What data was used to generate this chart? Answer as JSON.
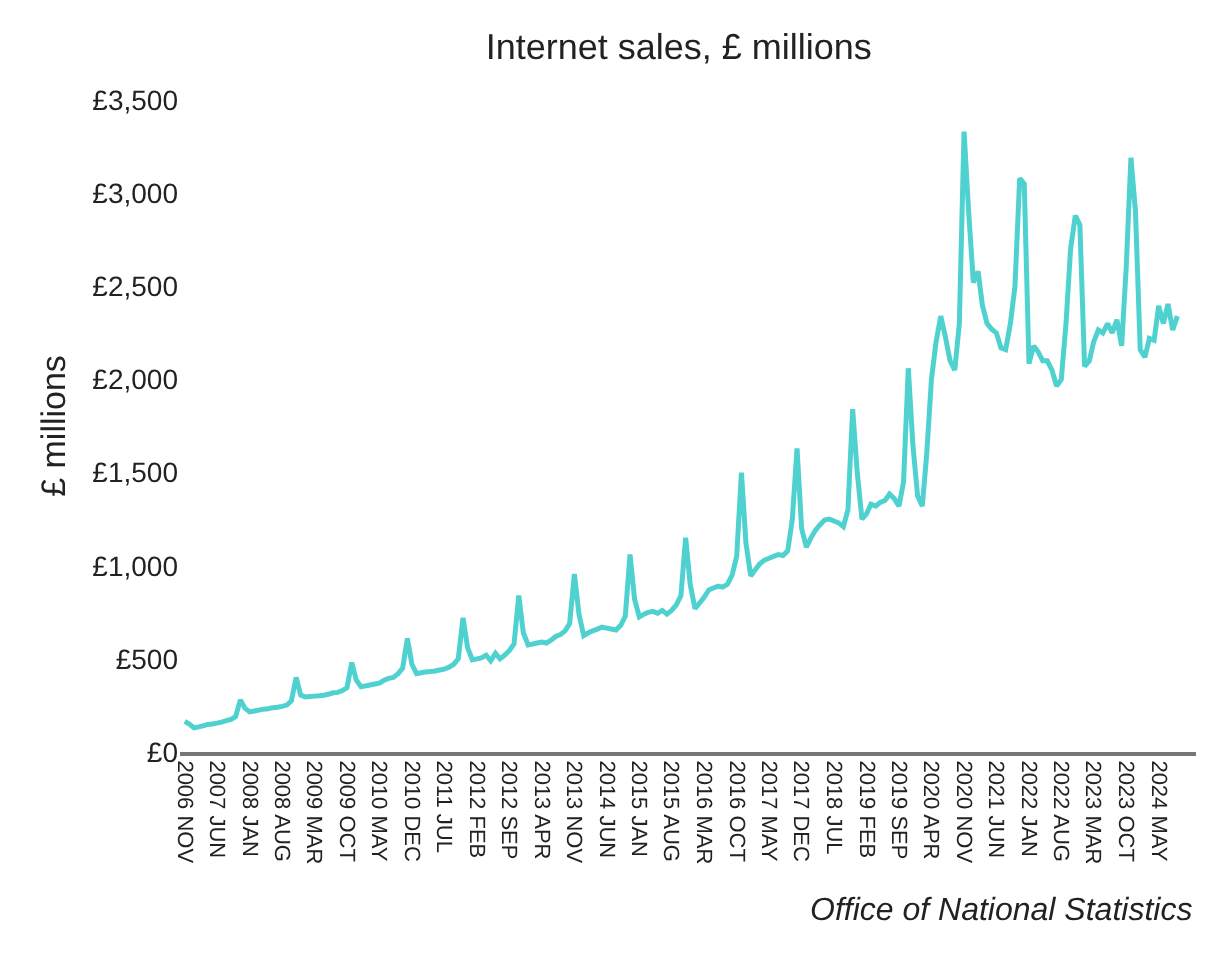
{
  "chart_data": {
    "type": "line",
    "title": "Internet sales, £ millions",
    "ylabel": "£ millions",
    "annotations": [
      "Office of National Statistics"
    ],
    "x": [
      "2006-11",
      "2006-12",
      "2007-01",
      "2007-02",
      "2007-03",
      "2007-04",
      "2007-05",
      "2007-06",
      "2007-07",
      "2007-08",
      "2007-09",
      "2007-10",
      "2007-11",
      "2007-12",
      "2008-01",
      "2008-02",
      "2008-03",
      "2008-04",
      "2008-05",
      "2008-06",
      "2008-07",
      "2008-08",
      "2008-09",
      "2008-10",
      "2008-11",
      "2008-12",
      "2009-01",
      "2009-02",
      "2009-03",
      "2009-04",
      "2009-05",
      "2009-06",
      "2009-07",
      "2009-08",
      "2009-09",
      "2009-10",
      "2009-11",
      "2009-12",
      "2010-01",
      "2010-02",
      "2010-03",
      "2010-04",
      "2010-05",
      "2010-06",
      "2010-07",
      "2010-08",
      "2010-09",
      "2010-10",
      "2010-11",
      "2010-12",
      "2011-01",
      "2011-02",
      "2011-03",
      "2011-04",
      "2011-05",
      "2011-06",
      "2011-07",
      "2011-08",
      "2011-09",
      "2011-10",
      "2011-11",
      "2011-12",
      "2012-01",
      "2012-02",
      "2012-03",
      "2012-04",
      "2012-05",
      "2012-06",
      "2012-07",
      "2012-08",
      "2012-09",
      "2012-10",
      "2012-11",
      "2012-12",
      "2013-01",
      "2013-02",
      "2013-03",
      "2013-04",
      "2013-05",
      "2013-06",
      "2013-07",
      "2013-08",
      "2013-09",
      "2013-10",
      "2013-11",
      "2013-12",
      "2014-01",
      "2014-02",
      "2014-03",
      "2014-04",
      "2014-05",
      "2014-06",
      "2014-07",
      "2014-08",
      "2014-09",
      "2014-10",
      "2014-11",
      "2014-12",
      "2015-01",
      "2015-02",
      "2015-03",
      "2015-04",
      "2015-05",
      "2015-06",
      "2015-07",
      "2015-08",
      "2015-09",
      "2015-10",
      "2015-11",
      "2015-12",
      "2016-01",
      "2016-02",
      "2016-03",
      "2016-04",
      "2016-05",
      "2016-06",
      "2016-07",
      "2016-08",
      "2016-09",
      "2016-10",
      "2016-11",
      "2016-12",
      "2017-01",
      "2017-02",
      "2017-03",
      "2017-04",
      "2017-05",
      "2017-06",
      "2017-07",
      "2017-08",
      "2017-09",
      "2017-10",
      "2017-11",
      "2017-12",
      "2018-01",
      "2018-02",
      "2018-03",
      "2018-04",
      "2018-05",
      "2018-06",
      "2018-07",
      "2018-08",
      "2018-09",
      "2018-10",
      "2018-11",
      "2018-12",
      "2019-01",
      "2019-02",
      "2019-03",
      "2019-04",
      "2019-05",
      "2019-06",
      "2019-07",
      "2019-08",
      "2019-09",
      "2019-10",
      "2019-11",
      "2019-12",
      "2020-01",
      "2020-02",
      "2020-03",
      "2020-04",
      "2020-05",
      "2020-06",
      "2020-07",
      "2020-08",
      "2020-09",
      "2020-10",
      "2020-11",
      "2020-12",
      "2021-01",
      "2021-02",
      "2021-03",
      "2021-04",
      "2021-05",
      "2021-06",
      "2021-07",
      "2021-08",
      "2021-09",
      "2021-10",
      "2021-11",
      "2021-12",
      "2022-01",
      "2022-02",
      "2022-03",
      "2022-04",
      "2022-05",
      "2022-06",
      "2022-07",
      "2022-08",
      "2022-09",
      "2022-10",
      "2022-11",
      "2022-12",
      "2023-01",
      "2023-02",
      "2023-03",
      "2023-04",
      "2023-05",
      "2023-06",
      "2023-07",
      "2023-08",
      "2023-09",
      "2023-10",
      "2023-11",
      "2023-12",
      "2024-01",
      "2024-02",
      "2024-03",
      "2024-04",
      "2024-05",
      "2024-06",
      "2024-07",
      "2024-08",
      "2024-09"
    ],
    "series": [
      {
        "color": "#4fd1d0",
        "values": [
          165,
          150,
          130,
          135,
          140,
          148,
          150,
          155,
          160,
          168,
          175,
          190,
          280,
          235,
          215,
          220,
          225,
          230,
          232,
          238,
          240,
          245,
          252,
          275,
          400,
          305,
          295,
          298,
          300,
          302,
          305,
          310,
          318,
          320,
          330,
          345,
          480,
          385,
          350,
          355,
          360,
          365,
          370,
          385,
          395,
          400,
          420,
          450,
          610,
          470,
          420,
          425,
          430,
          432,
          435,
          440,
          445,
          455,
          470,
          500,
          720,
          560,
          495,
          500,
          505,
          520,
          490,
          530,
          500,
          520,
          545,
          580,
          840,
          640,
          575,
          580,
          585,
          590,
          585,
          600,
          620,
          630,
          650,
          690,
          955,
          740,
          625,
          640,
          650,
          660,
          670,
          665,
          660,
          655,
          680,
          730,
          1060,
          820,
          725,
          740,
          750,
          755,
          745,
          760,
          740,
          760,
          790,
          840,
          1150,
          900,
          770,
          800,
          830,
          870,
          880,
          890,
          885,
          900,
          950,
          1050,
          1500,
          1120,
          945,
          980,
          1010,
          1030,
          1040,
          1050,
          1060,
          1055,
          1080,
          1250,
          1630,
          1200,
          1100,
          1150,
          1190,
          1220,
          1245,
          1250,
          1240,
          1230,
          1210,
          1300,
          1840,
          1500,
          1250,
          1280,
          1330,
          1320,
          1340,
          1350,
          1385,
          1360,
          1320,
          1450,
          2060,
          1650,
          1375,
          1320,
          1600,
          2000,
          2200,
          2340,
          2230,
          2100,
          2050,
          2300,
          3330,
          2900,
          2520,
          2580,
          2400,
          2300,
          2270,
          2250,
          2170,
          2160,
          2300,
          2500,
          3080,
          3050,
          2085,
          2180,
          2150,
          2100,
          2100,
          2050,
          1965,
          2000,
          2300,
          2700,
          2880,
          2830,
          2070,
          2100,
          2200,
          2265,
          2250,
          2300,
          2250,
          2320,
          2180,
          2600,
          3190,
          2900,
          2160,
          2120,
          2220,
          2210,
          2395,
          2300,
          2405,
          2265,
          2340
        ]
      }
    ],
    "xlim": [
      "2006-10",
      "2025-01"
    ],
    "xticks": [
      {
        "value": "2006-11",
        "label": "2006 NOV"
      },
      {
        "value": "2007-06",
        "label": "2007 JUN"
      },
      {
        "value": "2008-01",
        "label": "2008 JAN"
      },
      {
        "value": "2008-08",
        "label": "2008 AUG"
      },
      {
        "value": "2009-03",
        "label": "2009 MAR"
      },
      {
        "value": "2009-10",
        "label": "2009 OCT"
      },
      {
        "value": "2010-05",
        "label": "2010 MAY"
      },
      {
        "value": "2010-12",
        "label": "2010 DEC"
      },
      {
        "value": "2011-07",
        "label": "2011 JUL"
      },
      {
        "value": "2012-02",
        "label": "2012 FEB"
      },
      {
        "value": "2012-09",
        "label": "2012 SEP"
      },
      {
        "value": "2013-04",
        "label": "2013 APR"
      },
      {
        "value": "2013-11",
        "label": "2013 NOV"
      },
      {
        "value": "2014-06",
        "label": "2014 JUN"
      },
      {
        "value": "2015-01",
        "label": "2015 JAN"
      },
      {
        "value": "2015-08",
        "label": "2015 AUG"
      },
      {
        "value": "2016-03",
        "label": "2016 MAR"
      },
      {
        "value": "2016-10",
        "label": "2016 OCT"
      },
      {
        "value": "2017-05",
        "label": "2017 MAY"
      },
      {
        "value": "2017-12",
        "label": "2017 DEC"
      },
      {
        "value": "2018-07",
        "label": "2018 JUL"
      },
      {
        "value": "2019-02",
        "label": "2019 FEB"
      },
      {
        "value": "2019-09",
        "label": "2019 SEP"
      },
      {
        "value": "2020-04",
        "label": "2020 APR"
      },
      {
        "value": "2020-11",
        "label": "2020 NOV"
      },
      {
        "value": "2021-06",
        "label": "2021 JUN"
      },
      {
        "value": "2022-01",
        "label": "2022 JAN"
      },
      {
        "value": "2022-08",
        "label": "2022 AUG"
      },
      {
        "value": "2023-03",
        "label": "2023 MAR"
      },
      {
        "value": "2023-10",
        "label": "2023 OCT"
      },
      {
        "value": "2024-05",
        "label": "2024 MAY"
      }
    ],
    "ylim": [
      0,
      3500
    ],
    "yticks": [
      {
        "value": 0,
        "label": "£0"
      },
      {
        "value": 500,
        "label": "£500"
      },
      {
        "value": 1000,
        "label": "£1,000"
      },
      {
        "value": 1500,
        "label": "£1,500"
      },
      {
        "value": 2000,
        "label": "£2,000"
      },
      {
        "value": 2500,
        "label": "£2,500"
      },
      {
        "value": 3000,
        "label": "£3,000"
      },
      {
        "value": 3500,
        "label": "£3,500"
      }
    ],
    "grid": false,
    "marker": "none",
    "line_style": "solid"
  }
}
